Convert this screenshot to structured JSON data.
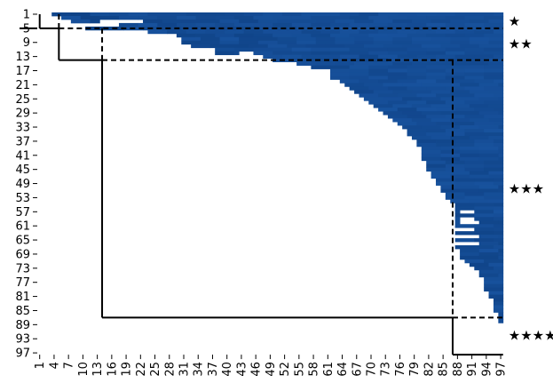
{
  "chart_data": {
    "type": "heatmap",
    "title": "",
    "xlabel": "",
    "ylabel": "",
    "n": 97,
    "x_ticks": [
      "1",
      "4",
      "7",
      "10",
      "13",
      "16",
      "19",
      "22",
      "25",
      "28",
      "31",
      "34",
      "37",
      "40",
      "43",
      "46",
      "49",
      "52",
      "55",
      "58",
      "61",
      "64",
      "67",
      "70",
      "73",
      "76",
      "79",
      "82",
      "85",
      "88",
      "91",
      "94",
      "97"
    ],
    "y_ticks": [
      "1",
      "5",
      "9",
      "13",
      "17",
      "21",
      "25",
      "29",
      "33",
      "37",
      "41",
      "45",
      "49",
      "53",
      "57",
      "61",
      "65",
      "69",
      "73",
      "77",
      "81",
      "85",
      "89",
      "93",
      "97"
    ],
    "color": "#1a56a3",
    "color_dark": "#0a3a7a",
    "grid": false,
    "row_extents": [
      [
        1,
        4,
        97
      ],
      [
        2,
        6,
        97
      ],
      [
        3,
        8,
        97
      ],
      [
        4,
        16,
        97
      ],
      [
        5,
        11,
        97
      ],
      [
        6,
        24,
        97
      ],
      [
        7,
        30,
        97
      ],
      [
        8,
        31,
        97
      ],
      [
        9,
        31,
        97
      ],
      [
        10,
        33,
        97
      ],
      [
        11,
        36,
        97
      ],
      [
        12,
        38,
        97
      ],
      [
        13,
        46,
        97
      ],
      [
        14,
        50,
        97
      ],
      [
        15,
        55,
        97
      ],
      [
        16,
        58,
        97
      ],
      [
        17,
        60,
        97
      ],
      [
        18,
        61,
        97
      ],
      [
        19,
        62,
        97
      ],
      [
        20,
        64,
        97
      ],
      [
        21,
        65,
        97
      ],
      [
        22,
        66,
        97
      ],
      [
        23,
        67,
        97
      ],
      [
        24,
        68,
        97
      ],
      [
        25,
        69,
        97
      ],
      [
        26,
        70,
        97
      ],
      [
        27,
        71,
        97
      ],
      [
        28,
        72,
        97
      ],
      [
        29,
        73,
        97
      ],
      [
        30,
        74,
        97
      ],
      [
        31,
        75,
        97
      ],
      [
        32,
        76,
        97
      ],
      [
        33,
        77,
        97
      ],
      [
        34,
        78,
        97
      ],
      [
        35,
        78,
        97
      ],
      [
        36,
        79,
        97
      ],
      [
        37,
        79,
        97
      ],
      [
        38,
        80,
        97
      ],
      [
        39,
        80,
        97
      ],
      [
        40,
        81,
        97
      ],
      [
        41,
        81,
        97
      ],
      [
        42,
        81,
        97
      ],
      [
        43,
        82,
        97
      ],
      [
        44,
        82,
        97
      ],
      [
        45,
        82,
        97
      ],
      [
        46,
        83,
        97
      ],
      [
        47,
        83,
        97
      ],
      [
        48,
        84,
        97
      ],
      [
        49,
        84,
        97
      ],
      [
        50,
        85,
        97
      ],
      [
        51,
        85,
        97
      ],
      [
        52,
        86,
        97
      ],
      [
        53,
        86,
        97
      ],
      [
        54,
        87,
        97
      ],
      [
        55,
        88,
        97
      ],
      [
        56,
        88,
        97
      ],
      [
        57,
        88,
        97
      ],
      [
        58,
        88,
        97
      ],
      [
        59,
        88,
        97
      ],
      [
        60,
        88,
        97
      ],
      [
        61,
        88,
        97
      ],
      [
        62,
        88,
        97
      ],
      [
        63,
        88,
        97
      ],
      [
        64,
        88,
        97
      ],
      [
        65,
        88,
        97
      ],
      [
        66,
        88,
        97
      ],
      [
        67,
        88,
        97
      ],
      [
        68,
        89,
        97
      ],
      [
        69,
        89,
        97
      ],
      [
        70,
        89,
        97
      ],
      [
        71,
        90,
        97
      ],
      [
        72,
        91,
        97
      ],
      [
        73,
        92,
        97
      ],
      [
        74,
        93,
        97
      ],
      [
        75,
        93,
        97
      ],
      [
        76,
        94,
        97
      ],
      [
        77,
        94,
        97
      ],
      [
        78,
        94,
        97
      ],
      [
        79,
        94,
        97
      ],
      [
        80,
        95,
        97
      ],
      [
        81,
        95,
        97
      ],
      [
        82,
        96,
        97
      ],
      [
        83,
        96,
        97
      ],
      [
        84,
        96,
        97
      ],
      [
        85,
        96,
        97
      ],
      [
        86,
        97,
        97
      ],
      [
        87,
        97,
        97
      ],
      [
        88,
        97,
        97
      ]
    ],
    "gaps": [
      [
        3,
        14,
        22
      ],
      [
        4,
        12,
        17
      ],
      [
        9,
        19,
        26
      ],
      [
        10,
        27,
        30
      ],
      [
        11,
        35,
        37
      ],
      [
        13,
        42,
        47
      ],
      [
        12,
        43,
        45
      ],
      [
        17,
        58,
        61
      ],
      [
        18,
        58,
        61
      ],
      [
        19,
        59,
        61
      ],
      [
        20,
        58,
        62
      ],
      [
        21,
        59,
        62
      ],
      [
        22,
        58,
        63
      ],
      [
        23,
        63,
        65
      ],
      [
        25,
        65,
        68
      ],
      [
        26,
        66,
        68
      ],
      [
        28,
        67,
        70
      ],
      [
        29,
        68,
        70
      ],
      [
        31,
        69,
        71
      ],
      [
        32,
        71,
        73
      ],
      [
        34,
        73,
        75
      ],
      [
        36,
        74,
        76
      ],
      [
        37,
        75,
        79
      ],
      [
        38,
        75,
        79
      ],
      [
        39,
        75,
        80
      ],
      [
        41,
        77,
        80
      ],
      [
        43,
        77,
        80
      ],
      [
        45,
        77,
        80
      ],
      [
        48,
        78,
        80
      ],
      [
        50,
        80,
        81
      ],
      [
        52,
        81,
        82
      ],
      [
        57,
        89,
        91
      ],
      [
        59,
        89,
        91
      ],
      [
        60,
        89,
        92
      ],
      [
        62,
        88,
        91
      ],
      [
        64,
        88,
        92
      ],
      [
        66,
        88,
        92
      ],
      [
        74,
        88,
        89
      ],
      [
        75,
        88,
        90
      ],
      [
        77,
        91,
        93
      ],
      [
        78,
        91,
        93
      ],
      [
        80,
        91,
        93
      ],
      [
        82,
        92,
        93
      ]
    ],
    "clusters": [
      {
        "label": "★",
        "start": 1,
        "end": 5
      },
      {
        "label": "★★",
        "start": 5,
        "end": 14
      },
      {
        "label": "★★★",
        "start": 14,
        "end": 87
      },
      {
        "label": "★★★★",
        "start": 87,
        "end": 97
      }
    ]
  }
}
